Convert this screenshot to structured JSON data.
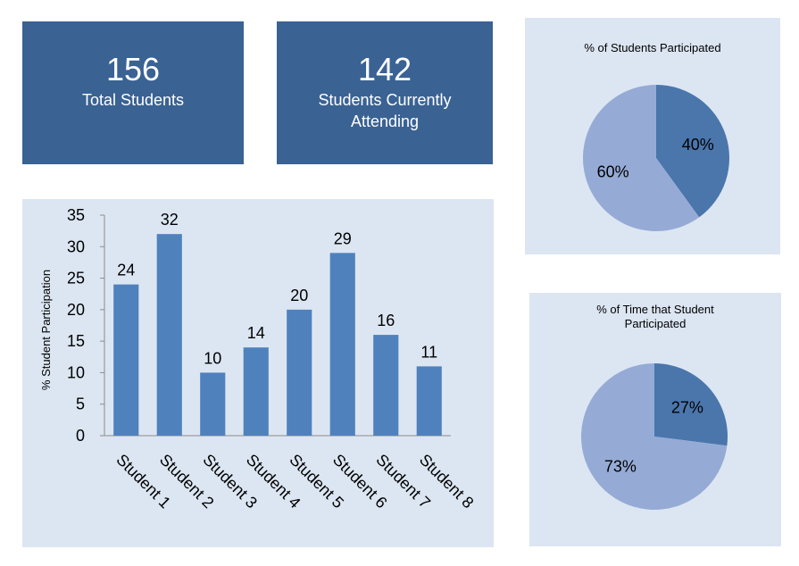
{
  "kpis": [
    {
      "value": "156",
      "label": "Total Students"
    },
    {
      "value": "142",
      "label": "Students Currently Attending"
    }
  ],
  "colors": {
    "kpi_bg": "#3a6293",
    "panel_bg": "#dce6f2",
    "bar": "#4f81bd",
    "pie_dark": "#4a76ac",
    "pie_light": "#95abd5"
  },
  "chart_data": [
    {
      "type": "bar",
      "title": "",
      "xlabel": "",
      "ylabel": "% Student Participation",
      "categories": [
        "Student 1",
        "Student 2",
        "Student 3",
        "Student 4",
        "Student 5",
        "Student 6",
        "Student 7",
        "Student 8"
      ],
      "values": [
        24,
        32,
        10,
        14,
        20,
        29,
        16,
        11
      ],
      "ylim": [
        0,
        35
      ],
      "yticks": [
        0,
        5,
        10,
        15,
        20,
        25,
        30,
        35
      ],
      "data_labels": true,
      "grid": false,
      "legend": "none"
    },
    {
      "type": "pie",
      "title": "% of Students Participated",
      "slices": [
        {
          "label": "40%",
          "value": 40,
          "color": "#4a76ac"
        },
        {
          "label": "60%",
          "value": 60,
          "color": "#95abd5"
        }
      ],
      "legend": "none"
    },
    {
      "type": "pie",
      "title": "% of Time that Student Participated",
      "title_lines": [
        "% of Time that Student",
        "Participated"
      ],
      "slices": [
        {
          "label": "27%",
          "value": 27,
          "color": "#4a76ac"
        },
        {
          "label": "73%",
          "value": 73,
          "color": "#95abd5"
        }
      ],
      "legend": "none"
    }
  ]
}
